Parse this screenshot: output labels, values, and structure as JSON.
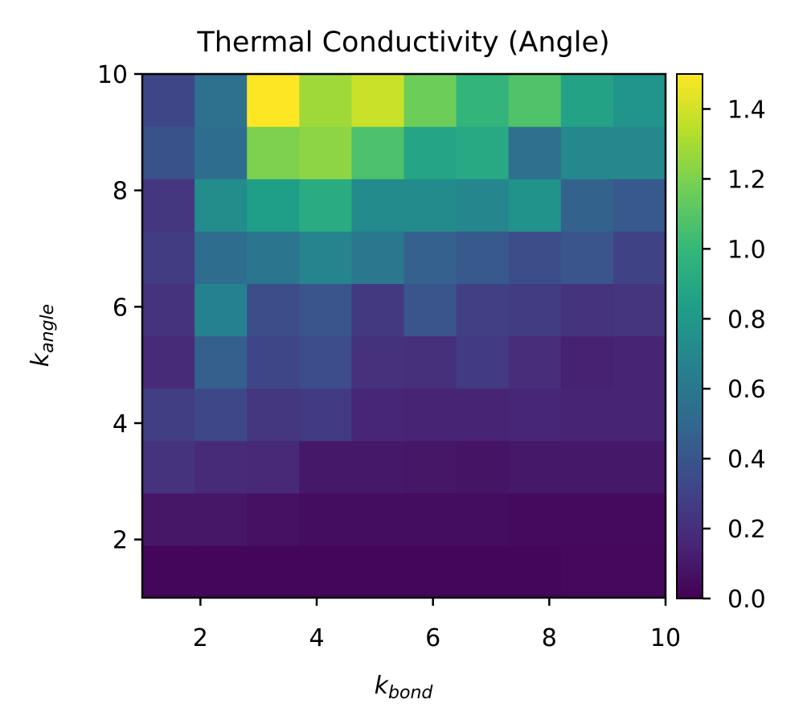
{
  "chart_data": {
    "type": "heatmap",
    "title": "Thermal Conductivity (Angle)",
    "xlabel": {
      "base": "k",
      "sub": "bond"
    },
    "ylabel": {
      "base": "k",
      "sub": "angle"
    },
    "xlim": [
      1,
      10
    ],
    "ylim": [
      1,
      10
    ],
    "x_ticks": [
      "2",
      "4",
      "6",
      "8",
      "10"
    ],
    "y_ticks": [
      "2",
      "4",
      "6",
      "8",
      "10"
    ],
    "colorbar": {
      "colormap": "viridis",
      "range": [
        0,
        1.5
      ],
      "ticks": [
        "0.0",
        "0.2",
        "0.4",
        "0.6",
        "0.8",
        "1.0",
        "1.2",
        "1.4"
      ]
    },
    "x_centers": [
      1.45,
      2.35,
      3.25,
      4.15,
      5.05,
      5.95,
      6.85,
      7.75,
      8.65,
      9.55
    ],
    "y_centers": [
      1.45,
      2.35,
      3.25,
      4.15,
      5.05,
      5.95,
      6.85,
      7.75,
      8.65,
      9.55
    ],
    "values": [
      [
        0.02,
        0.02,
        0.02,
        0.02,
        0.02,
        0.02,
        0.02,
        0.02,
        0.03,
        0.03
      ],
      [
        0.09,
        0.09,
        0.07,
        0.05,
        0.05,
        0.05,
        0.05,
        0.04,
        0.04,
        0.04
      ],
      [
        0.22,
        0.18,
        0.17,
        0.1,
        0.1,
        0.09,
        0.08,
        0.1,
        0.1,
        0.1
      ],
      [
        0.28,
        0.33,
        0.24,
        0.26,
        0.16,
        0.15,
        0.15,
        0.16,
        0.15,
        0.15
      ],
      [
        0.18,
        0.45,
        0.32,
        0.35,
        0.21,
        0.2,
        0.26,
        0.19,
        0.14,
        0.15
      ],
      [
        0.22,
        0.66,
        0.36,
        0.4,
        0.25,
        0.4,
        0.29,
        0.27,
        0.22,
        0.23
      ],
      [
        0.27,
        0.53,
        0.59,
        0.68,
        0.6,
        0.46,
        0.42,
        0.36,
        0.4,
        0.3
      ],
      [
        0.24,
        0.73,
        0.84,
        0.92,
        0.72,
        0.72,
        0.69,
        0.77,
        0.47,
        0.42
      ],
      [
        0.38,
        0.53,
        1.2,
        1.24,
        1.07,
        0.88,
        0.9,
        0.55,
        0.7,
        0.7
      ],
      [
        0.32,
        0.56,
        1.5,
        1.28,
        1.38,
        1.16,
        0.98,
        1.08,
        0.86,
        0.78
      ]
    ]
  }
}
